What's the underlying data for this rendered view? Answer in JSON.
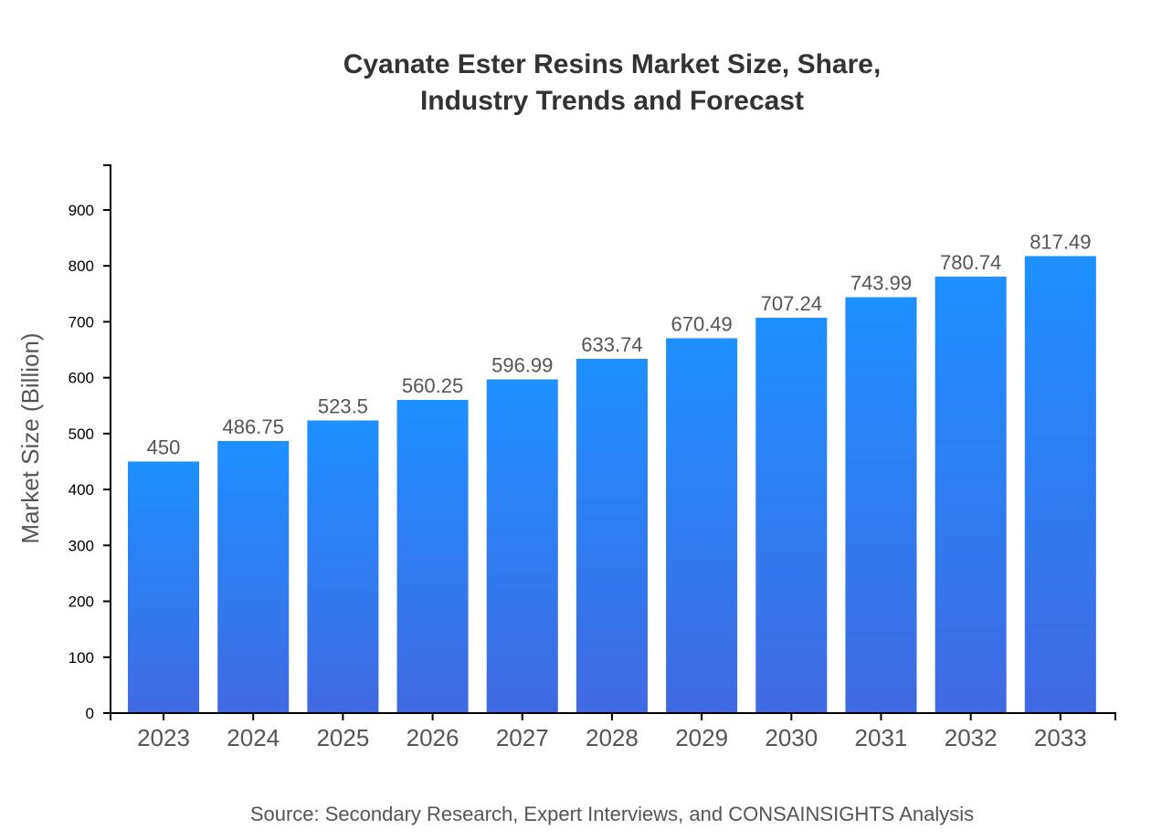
{
  "chart_data": {
    "type": "bar",
    "title": [
      "Cyanate Ester Resins Market Size, Share,",
      "Industry Trends and Forecast"
    ],
    "xlabel": "",
    "ylabel": "Market Size (Billion)",
    "categories": [
      "2023",
      "2024",
      "2025",
      "2026",
      "2027",
      "2028",
      "2029",
      "2030",
      "2031",
      "2032",
      "2033"
    ],
    "values": [
      450,
      486.75,
      523.5,
      560.25,
      596.99,
      633.74,
      670.49,
      707.24,
      743.99,
      780.74,
      817.49
    ],
    "data_labels": [
      "450",
      "486.75",
      "523.5",
      "560.25",
      "596.99",
      "633.74",
      "670.49",
      "707.24",
      "743.99",
      "780.74",
      "817.49"
    ],
    "ylim": [
      0,
      980
    ],
    "yticks": [
      0,
      100,
      200,
      300,
      400,
      500,
      600,
      700,
      800,
      900
    ],
    "grid": false,
    "bar_gradient": {
      "top": "#1e90ff",
      "bottom": "#4169e1"
    },
    "source": "Source: Secondary Research, Expert Interviews, and CONSAINSIGHTS Analysis"
  }
}
